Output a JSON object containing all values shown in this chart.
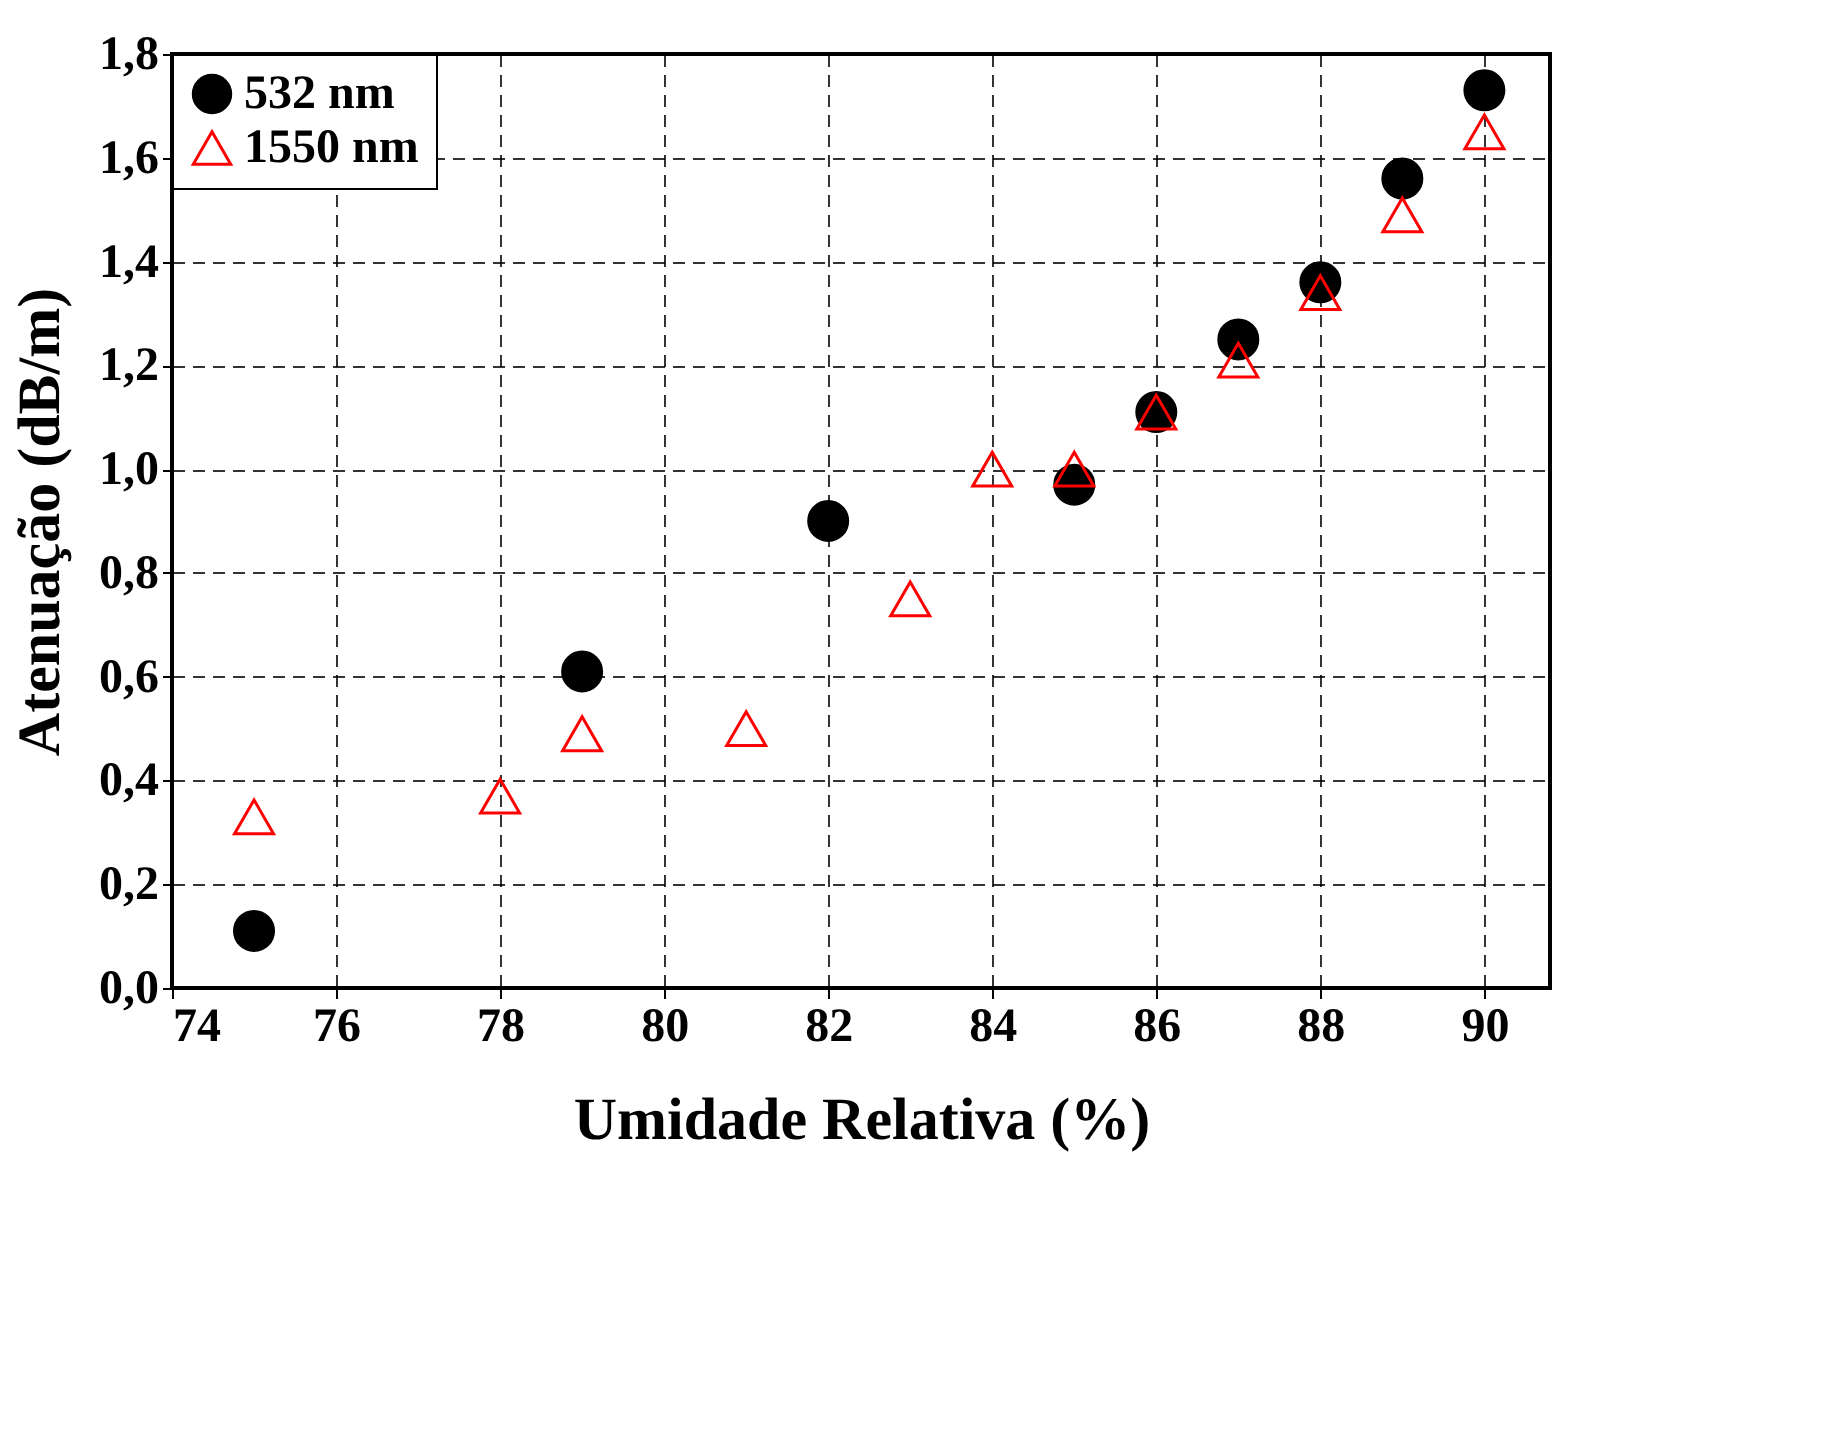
{
  "chart_data": {
    "type": "scatter",
    "xlabel": "Umidade Relativa (%)",
    "ylabel": "Atenuação (dB/m)",
    "series": [
      {
        "name": "532 nm",
        "color": "#000000",
        "marker": "circle",
        "x": [
          75,
          79,
          82,
          85,
          86,
          87,
          88,
          89,
          90
        ],
        "values": [
          0.11,
          0.61,
          0.9,
          0.97,
          1.11,
          1.25,
          1.36,
          1.56,
          1.73
        ]
      },
      {
        "name": "1550 nm",
        "color": "#ff0000",
        "marker": "triangle",
        "x": [
          75,
          78,
          79,
          81,
          83,
          84,
          85,
          86,
          87,
          88,
          89,
          90
        ],
        "values": [
          0.33,
          0.37,
          0.49,
          0.5,
          0.75,
          1.0,
          1.0,
          1.11,
          1.21,
          1.34,
          1.49,
          1.65
        ]
      }
    ],
    "xlim": [
      74,
      90.8
    ],
    "xticks": [
      74,
      76,
      78,
      80,
      82,
      84,
      86,
      88,
      90
    ],
    "ylim": [
      0,
      1.8
    ],
    "yticks": [
      {
        "value": 0,
        "label": "0,0"
      },
      {
        "value": 0.2,
        "label": "0,2"
      },
      {
        "value": 0.4,
        "label": "0,4"
      },
      {
        "value": 0.6,
        "label": "0,6"
      },
      {
        "value": 0.8,
        "label": "0,8"
      },
      {
        "value": 1.0,
        "label": "1,0"
      },
      {
        "value": 1.2,
        "label": "1,2"
      },
      {
        "value": 1.4,
        "label": "1,4"
      },
      {
        "value": 1.6,
        "label": "1,6"
      },
      {
        "value": 1.8,
        "label": "1,8"
      }
    ],
    "grid": true,
    "legend": "top left"
  }
}
